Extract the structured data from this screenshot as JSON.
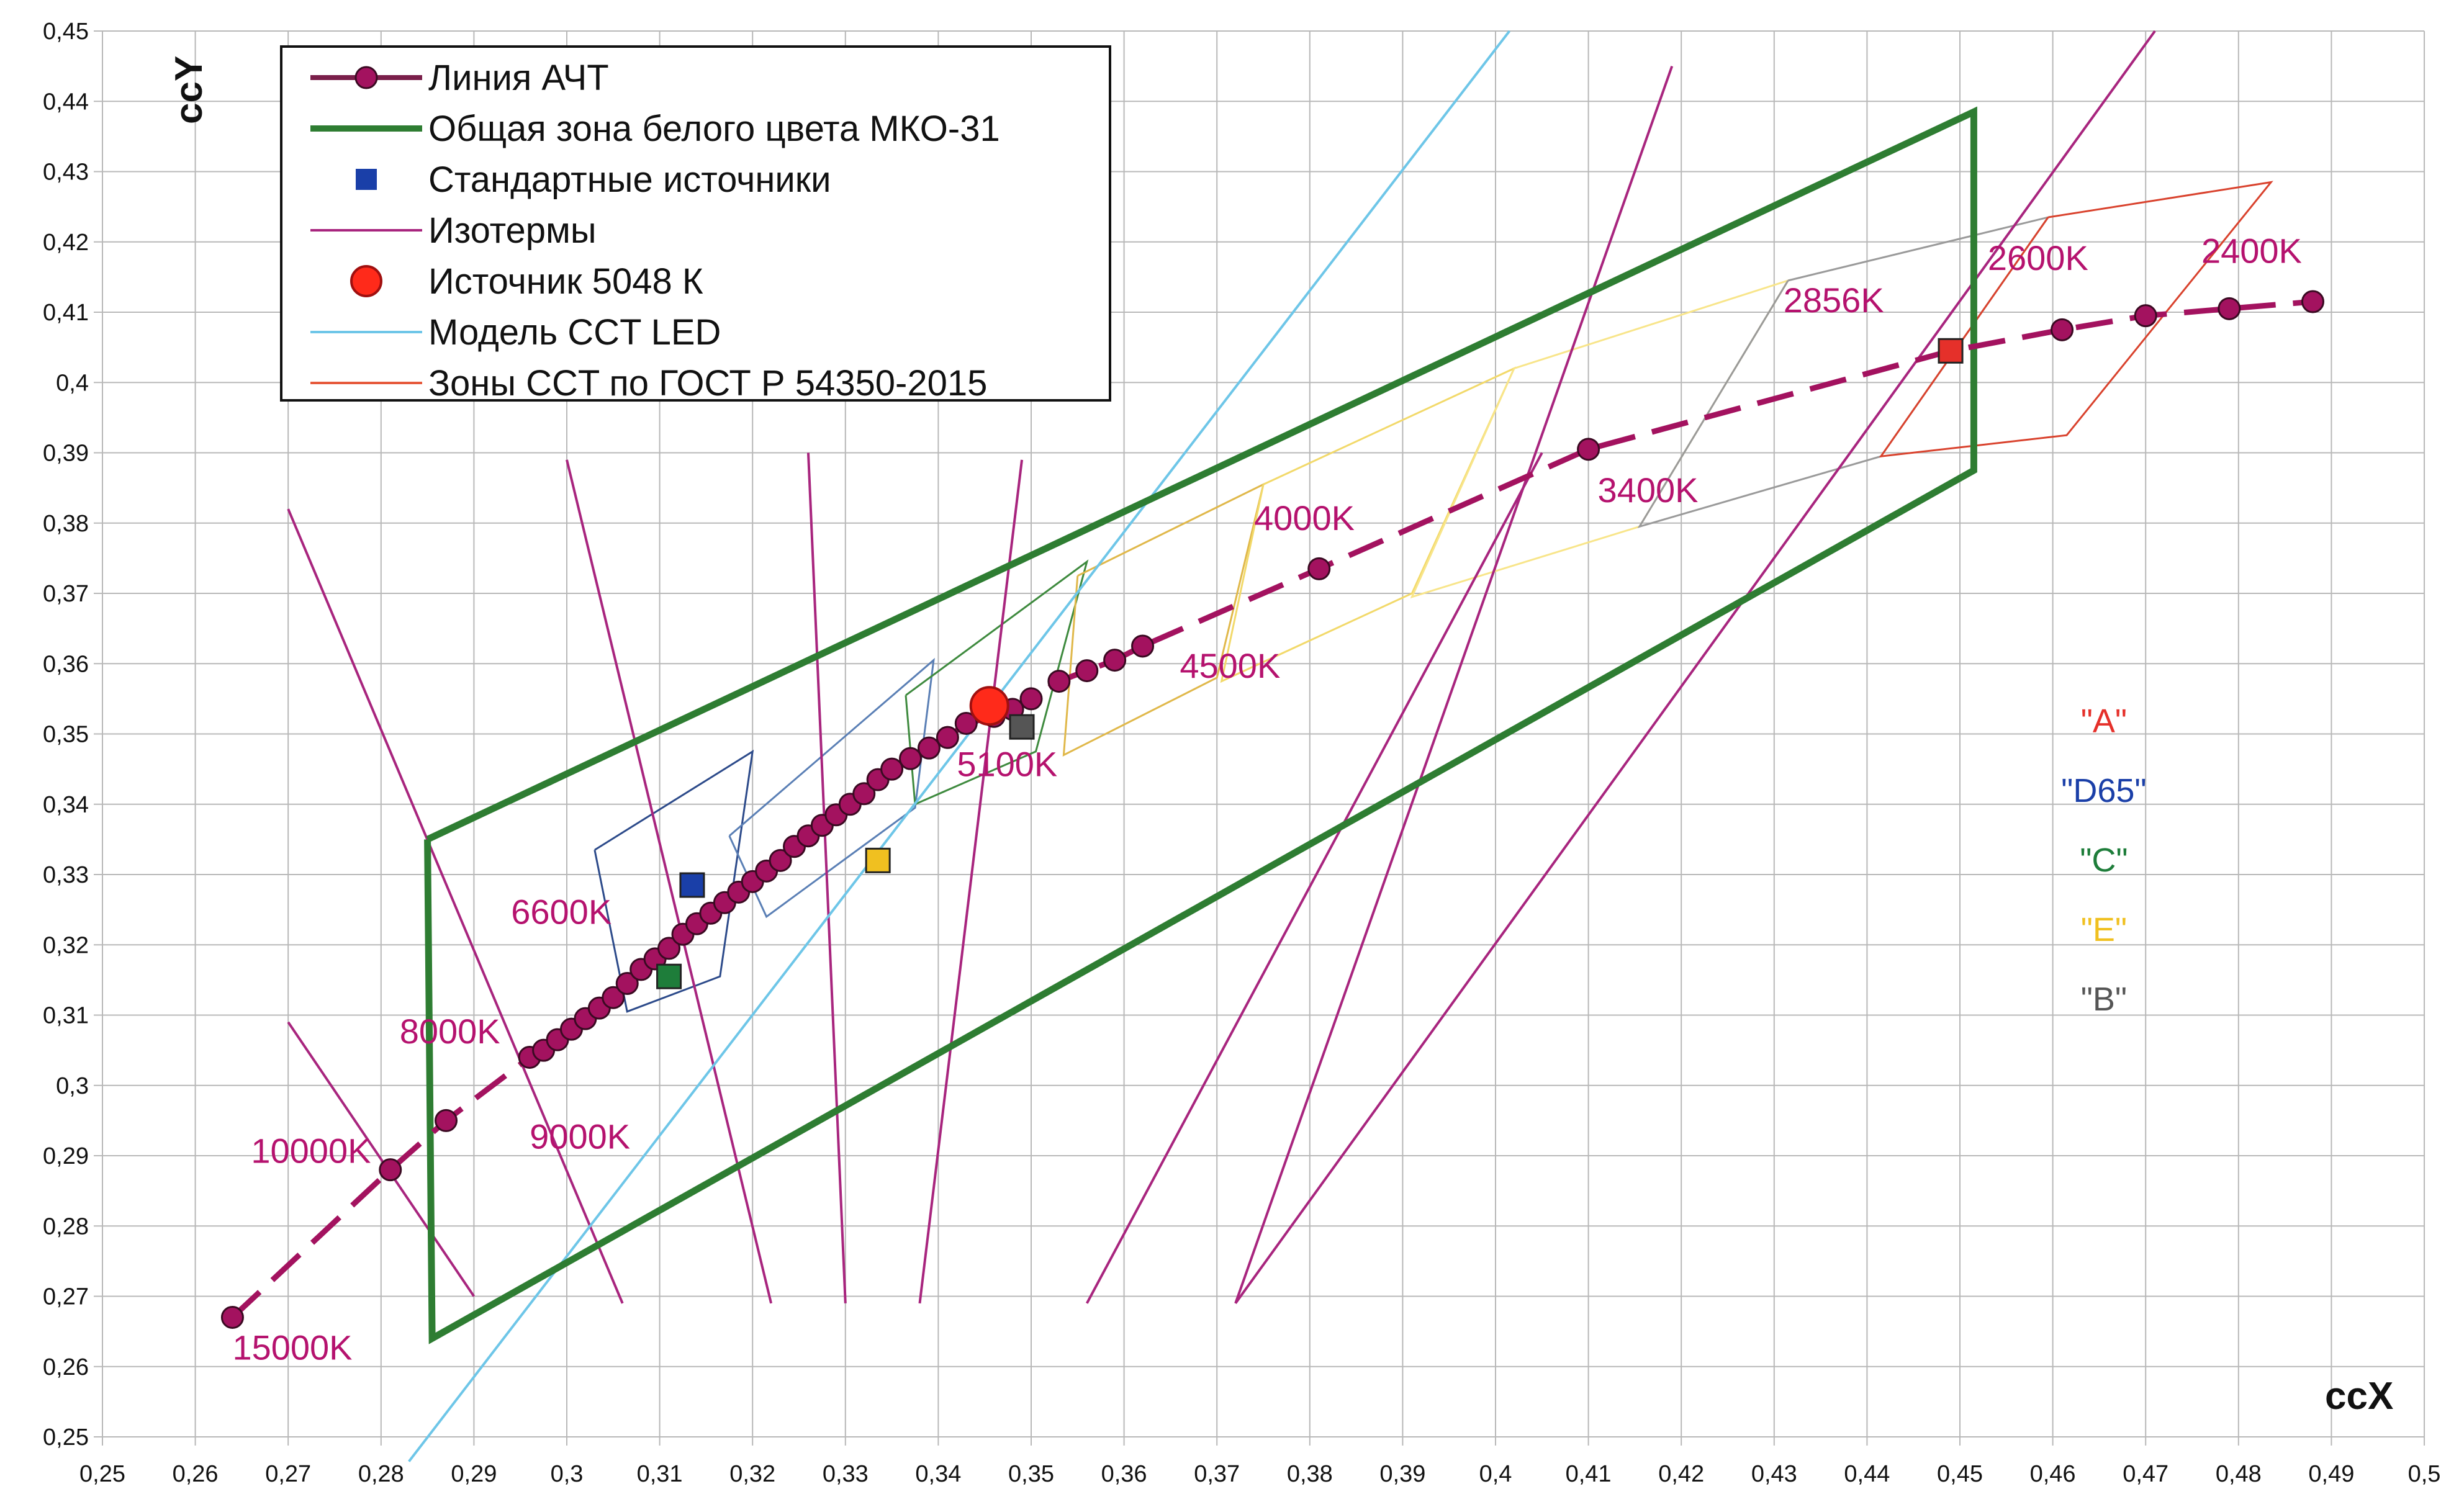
{
  "chart_data": {
    "type": "scatter",
    "xlabel": "ccX",
    "ylabel": "ccY",
    "xlim": [
      0.25,
      0.5
    ],
    "ylim": [
      0.25,
      0.45
    ],
    "grid": true,
    "legend_placement": "top-left",
    "x_ticks": [
      "0,25",
      "0,26",
      "0,27",
      "0,28",
      "0,29",
      "0,3",
      "0,31",
      "0,32",
      "0,33",
      "0,34",
      "0,35",
      "0,36",
      "0,37",
      "0,38",
      "0,39",
      "0,4",
      "0,41",
      "0,42",
      "0,43",
      "0,44",
      "0,45",
      "0,46",
      "0,47",
      "0,48",
      "0,49",
      "0,5"
    ],
    "y_ticks": [
      "0,25",
      "0,26",
      "0,27",
      "0,28",
      "0,29",
      "0,3",
      "0,31",
      "0,32",
      "0,33",
      "0,34",
      "0,35",
      "0,36",
      "0,37",
      "0,38",
      "0,39",
      "0,4",
      "0,41",
      "0,42",
      "0,43",
      "0,44",
      "0,45"
    ],
    "legend": [
      {
        "label": "Линия АЧТ",
        "symbol": "line-dot",
        "color": "#7a1f4a"
      },
      {
        "label": "Общая зона белого цвета МКО-31",
        "symbol": "line",
        "color": "#2e7d32"
      },
      {
        "label": "Стандартные источники",
        "symbol": "square",
        "color": "#1a3fa8"
      },
      {
        "label": "Изотермы",
        "symbol": "line",
        "color": "#a8257e"
      },
      {
        "label": "Источник 5048 К",
        "symbol": "circle",
        "color": "#ff2a1a"
      },
      {
        "label": "Модель CCT LED",
        "symbol": "line",
        "color": "#6ec6e8"
      },
      {
        "label": "Зоны CCT по ГОСТ Р 54350-2015",
        "symbol": "line",
        "color": "#e65a3c"
      }
    ],
    "blackbody_line": {
      "name": "Линия АЧТ",
      "color": "#a3125f",
      "x": [
        0.264,
        0.281,
        0.287,
        0.296,
        0.2975,
        0.299,
        0.3005,
        0.302,
        0.3035,
        0.305,
        0.3065,
        0.308,
        0.3095,
        0.311,
        0.3125,
        0.314,
        0.3155,
        0.317,
        0.3185,
        0.32,
        0.3215,
        0.323,
        0.3245,
        0.326,
        0.3275,
        0.329,
        0.3305,
        0.332,
        0.3335,
        0.335,
        0.337,
        0.339,
        0.341,
        0.343,
        0.346,
        0.348,
        0.35,
        0.353,
        0.356,
        0.359,
        0.362,
        0.381,
        0.41,
        0.449,
        0.461,
        0.47,
        0.479,
        0.488
      ],
      "y": [
        0.267,
        0.288,
        0.295,
        0.304,
        0.305,
        0.3065,
        0.308,
        0.3095,
        0.311,
        0.3125,
        0.3145,
        0.3165,
        0.318,
        0.3195,
        0.3215,
        0.323,
        0.3245,
        0.326,
        0.3275,
        0.329,
        0.3305,
        0.332,
        0.334,
        0.3355,
        0.337,
        0.3385,
        0.34,
        0.3415,
        0.3435,
        0.345,
        0.3465,
        0.348,
        0.3495,
        0.3515,
        0.3525,
        0.3535,
        0.355,
        0.3575,
        0.359,
        0.3605,
        0.3625,
        0.3735,
        0.3905,
        0.4045,
        0.4075,
        0.4095,
        0.4105,
        0.4115
      ]
    },
    "temperature_labels": [
      {
        "text": "15000K",
        "x": 0.264,
        "y": 0.261
      },
      {
        "text": "10000K",
        "x": 0.266,
        "y": 0.289
      },
      {
        "text": "9000K",
        "x": 0.296,
        "y": 0.291
      },
      {
        "text": "8000K",
        "x": 0.282,
        "y": 0.306
      },
      {
        "text": "6600K",
        "x": 0.294,
        "y": 0.323
      },
      {
        "text": "5100K",
        "x": 0.342,
        "y": 0.344
      },
      {
        "text": "4500K",
        "x": 0.366,
        "y": 0.358
      },
      {
        "text": "4000K",
        "x": 0.374,
        "y": 0.379
      },
      {
        "text": "3400K",
        "x": 0.411,
        "y": 0.383
      },
      {
        "text": "2856K",
        "x": 0.431,
        "y": 0.41
      },
      {
        "text": "2600K",
        "x": 0.453,
        "y": 0.416
      },
      {
        "text": "2400K",
        "x": 0.476,
        "y": 0.417
      }
    ],
    "cie_white_zone": {
      "name": "Общая зона белого цвета МКО-31",
      "color": "#2e7d32",
      "points": [
        [
          0.285,
          0.335
        ],
        [
          0.4515,
          0.4385
        ],
        [
          0.4515,
          0.3875
        ],
        [
          0.2855,
          0.264
        ],
        [
          0.285,
          0.335
        ]
      ]
    },
    "isotherms": [
      [
        [
          0.27,
          0.382
        ],
        [
          0.306,
          0.269
        ]
      ],
      [
        [
          0.27,
          0.309
        ],
        [
          0.29,
          0.27
        ]
      ],
      [
        [
          0.3,
          0.389
        ],
        [
          0.322,
          0.269
        ]
      ],
      [
        [
          0.326,
          0.39
        ],
        [
          0.33,
          0.269
        ]
      ],
      [
        [
          0.349,
          0.389
        ],
        [
          0.338,
          0.269
        ]
      ],
      [
        [
          0.405,
          0.39
        ],
        [
          0.356,
          0.269
        ]
      ],
      [
        [
          0.419,
          0.445
        ],
        [
          0.372,
          0.269
        ]
      ],
      [
        [
          0.471,
          0.45
        ],
        [
          0.372,
          0.269
        ]
      ]
    ],
    "led_model_line": {
      "name": "Модель CCT LED",
      "color": "#6ec6e8",
      "points": [
        [
          0.283,
          0.2465
        ],
        [
          0.4015,
          0.45
        ]
      ]
    },
    "gost_zones": [
      {
        "color": "#2c4a8a",
        "points": [
          [
            0.303,
            0.3335
          ],
          [
            0.32,
            0.3475
          ],
          [
            0.3165,
            0.3155
          ],
          [
            0.3065,
            0.3105
          ],
          [
            0.303,
            0.3335
          ]
        ]
      },
      {
        "color": "#5a7fb5",
        "points": [
          [
            0.3175,
            0.3355
          ],
          [
            0.3395,
            0.3605
          ],
          [
            0.3375,
            0.3395
          ],
          [
            0.3215,
            0.324
          ],
          [
            0.3175,
            0.3355
          ]
        ]
      },
      {
        "color": "#3e8a3e",
        "points": [
          [
            0.3365,
            0.3555
          ],
          [
            0.356,
            0.3745
          ],
          [
            0.3505,
            0.3475
          ],
          [
            0.3375,
            0.34
          ],
          [
            0.3365,
            0.3555
          ]
        ]
      },
      {
        "color": "#e0b84a",
        "points": [
          [
            0.355,
            0.3725
          ],
          [
            0.375,
            0.3855
          ],
          [
            0.37,
            0.358
          ],
          [
            0.3535,
            0.347
          ],
          [
            0.355,
            0.3725
          ]
        ]
      },
      {
        "color": "#f2d96a",
        "points": [
          [
            0.375,
            0.3855
          ],
          [
            0.402,
            0.402
          ],
          [
            0.391,
            0.37
          ],
          [
            0.3705,
            0.3575
          ],
          [
            0.375,
            0.3855
          ]
        ]
      },
      {
        "color": "#f8e58a",
        "points": [
          [
            0.402,
            0.402
          ],
          [
            0.4315,
            0.4145
          ],
          [
            0.4155,
            0.3795
          ],
          [
            0.391,
            0.3695
          ],
          [
            0.402,
            0.402
          ]
        ]
      },
      {
        "color": "#9a9a9a",
        "points": [
          [
            0.4315,
            0.4145
          ],
          [
            0.4595,
            0.4235
          ],
          [
            0.4415,
            0.3895
          ],
          [
            0.4155,
            0.3795
          ],
          [
            0.4315,
            0.4145
          ]
        ]
      },
      {
        "color": "#d9422d",
        "points": [
          [
            0.4595,
            0.4235
          ],
          [
            0.4835,
            0.4285
          ],
          [
            0.4615,
            0.3925
          ],
          [
            0.4415,
            0.3895
          ],
          [
            0.4595,
            0.4235
          ]
        ]
      }
    ],
    "standard_sources": [
      {
        "label": "\"A\"",
        "color": "#e5302a",
        "x": 0.449,
        "y": 0.4045
      },
      {
        "label": "\"D65\"",
        "color": "#1a3fa8",
        "x": 0.3135,
        "y": 0.3285
      },
      {
        "label": "\"C\"",
        "color": "#1e7d3a",
        "x": 0.311,
        "y": 0.3155
      },
      {
        "label": "\"E\"",
        "color": "#f0c020",
        "x": 0.3335,
        "y": 0.332
      },
      {
        "label": "\"B\"",
        "color": "#555555",
        "x": 0.349,
        "y": 0.351
      }
    ],
    "source_labels_anchor": {
      "x": 0.4655
    },
    "source_5048": {
      "name": "Источник 5048 К",
      "color": "#ff2a1a",
      "x": 0.3455,
      "y": 0.354
    }
  }
}
